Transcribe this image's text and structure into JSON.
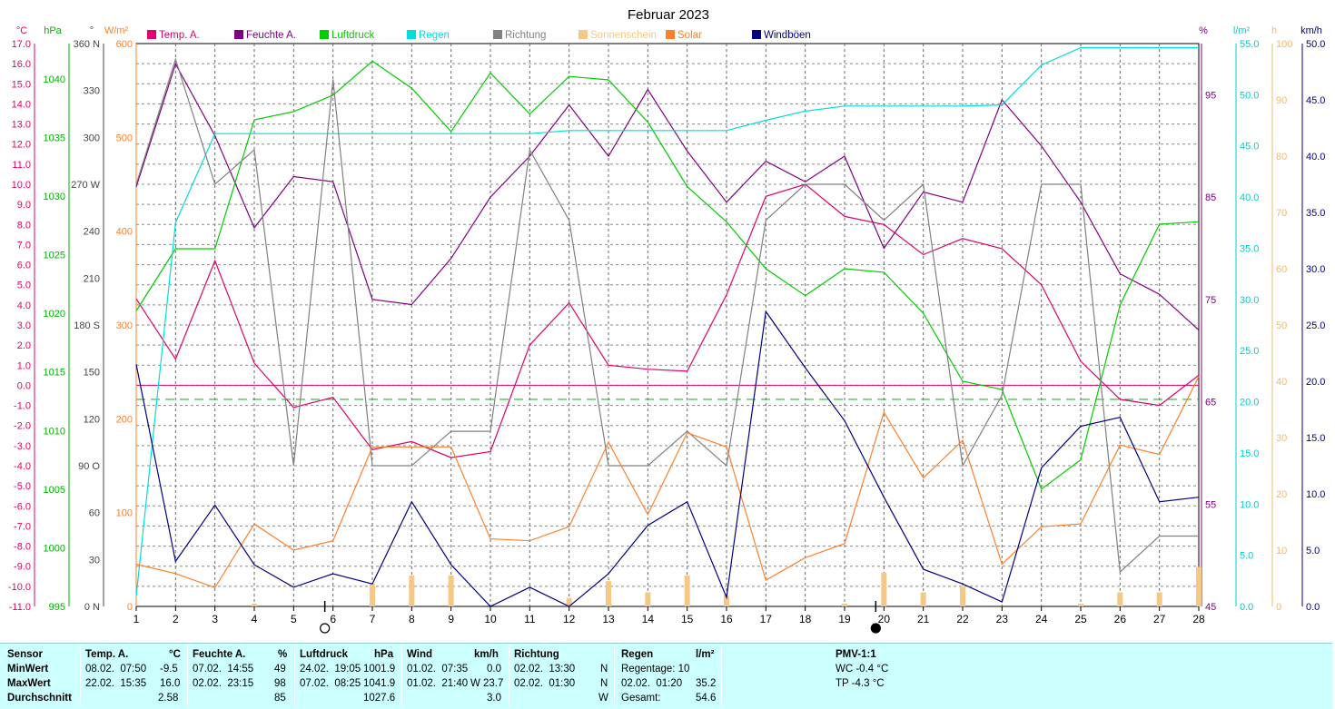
{
  "chart_data": {
    "type": "line",
    "title": "Februar 2023",
    "x": [
      1,
      2,
      3,
      4,
      5,
      6,
      7,
      8,
      9,
      10,
      11,
      12,
      13,
      14,
      15,
      16,
      17,
      18,
      19,
      20,
      21,
      22,
      23,
      24,
      25,
      26,
      27,
      28
    ],
    "x_ticks": [
      "1",
      "2",
      "3",
      "4",
      "5",
      "6",
      "7",
      "8",
      "9",
      "10",
      "11",
      "12",
      "13",
      "14",
      "15",
      "16",
      "17",
      "18",
      "19",
      "20",
      "21",
      "22",
      "23",
      "24",
      "25",
      "26",
      "27",
      "28"
    ],
    "grid": true,
    "legend_position": "top",
    "axes": {
      "temp": {
        "unit": "°C",
        "range": [
          -11,
          17
        ],
        "ticks": [
          "17.0",
          "16.0",
          "15.0",
          "14.0",
          "13.0",
          "12.0",
          "11.0",
          "10.0",
          "9.0",
          "8.0",
          "7.0",
          "6.0",
          "5.0",
          "4.0",
          "3.0",
          "2.0",
          "1.0",
          "0.0",
          "-1.0",
          "-2.0",
          "-3.0",
          "-4.0",
          "-5.0",
          "-6.0",
          "-7.0",
          "-8.0",
          "-9.0",
          "-10.0",
          "-11.0"
        ]
      },
      "press": {
        "unit": "hPa",
        "range": [
          995,
          1043
        ],
        "ticks": [
          "1040",
          "1035",
          "1030",
          "1025",
          "1020",
          "1015",
          "1010",
          "1005",
          "1000",
          "995"
        ]
      },
      "dir": {
        "unit": "°",
        "range": [
          0,
          360
        ],
        "ticks": [
          "360 N",
          "330",
          "300",
          "270 W",
          "240",
          "210",
          "180 S",
          "150",
          "120",
          "90  O",
          "60",
          "30",
          "0   N"
        ]
      },
      "solar": {
        "unit": "W/m²",
        "range": [
          0,
          600
        ],
        "ticks": [
          "600",
          "500",
          "400",
          "300",
          "200",
          "100",
          "0"
        ]
      },
      "hum": {
        "unit": "%",
        "range": [
          45,
          100
        ],
        "ticks": [
          "95",
          "85",
          "75",
          "65",
          "55",
          "45"
        ]
      },
      "rain": {
        "unit": "l/m²",
        "range": [
          0,
          55
        ],
        "ticks": [
          "55.0",
          "50.0",
          "45.0",
          "40.0",
          "35.0",
          "30.0",
          "25.0",
          "20.0",
          "15.0",
          "10.0",
          "5.0",
          "0.0"
        ]
      },
      "sun": {
        "unit": "h",
        "range": [
          0,
          100
        ],
        "ticks": [
          "100",
          "90",
          "80",
          "70",
          "60",
          "50",
          "40",
          "30",
          "20",
          "10",
          "0"
        ]
      },
      "gust": {
        "unit": "km/h",
        "range": [
          0,
          50
        ],
        "ticks": [
          "50.0",
          "45.0",
          "40.0",
          "35.0",
          "30.0",
          "25.0",
          "20.0",
          "15.0",
          "10.0",
          "5.0",
          "0.0"
        ]
      }
    },
    "series": [
      {
        "name": "Temp. A.",
        "color": "#e0006e",
        "axis": "temp",
        "values": [
          4.3,
          1.3,
          6.2,
          1.1,
          -1.1,
          -0.6,
          -3.2,
          -2.8,
          -3.6,
          -3.3,
          2.0,
          4.1,
          1.0,
          0.8,
          0.7,
          4.5,
          9.4,
          10.0,
          8.4,
          8.0,
          6.5,
          7.3,
          6.8,
          5.0,
          1.2,
          -0.7,
          -1.0,
          0.5
        ]
      },
      {
        "name": "Feuchte A.",
        "color": "#800080",
        "axis": "hum",
        "values": [
          86,
          98,
          91,
          82,
          87,
          86.5,
          75,
          74.5,
          79,
          85,
          89,
          94,
          89,
          95.5,
          89.5,
          84.5,
          88.5,
          86.5,
          89,
          80,
          85.5,
          84.5,
          94.5,
          90,
          84.5,
          77.5,
          75.5,
          72
        ]
      },
      {
        "name": "Luftdruck",
        "color": "#00cc00",
        "axis": "press",
        "values": [
          1020.2,
          1025.5,
          1025.5,
          1036.5,
          1037.2,
          1038.6,
          1041.5,
          1039.2,
          1035.5,
          1040.5,
          1037.0,
          1040.2,
          1039.9,
          1036.3,
          1030.8,
          1027.8,
          1023.8,
          1021.5,
          1023.8,
          1023.5,
          1020.0,
          1014.2,
          1013.5,
          1005.0,
          1007.5,
          1020.7,
          1027.6,
          1027.8
        ]
      },
      {
        "name": "Regen",
        "color": "#00dddd",
        "axis": "rain",
        "values": [
          1.0,
          37.5,
          46.2,
          46.2,
          46.2,
          46.2,
          46.2,
          46.2,
          46.2,
          46.2,
          46.2,
          46.5,
          46.5,
          46.5,
          46.5,
          46.5,
          47.5,
          48.4,
          48.9,
          48.9,
          48.9,
          48.9,
          49.0,
          52.9,
          54.6,
          54.6,
          54.6,
          54.6
        ]
      },
      {
        "name": "Richtung",
        "color": "#808080",
        "axis": "dir",
        "values": [
          270,
          350,
          270,
          292,
          90,
          337,
          90,
          90,
          112,
          112,
          292,
          247,
          90,
          90,
          112,
          90,
          247,
          270,
          270,
          247,
          270,
          90,
          135,
          270,
          270,
          22,
          45,
          45
        ]
      },
      {
        "name": "Sonnenschein",
        "color": "#f5c886",
        "axis": "sun",
        "kind": "bar",
        "values": [
          0,
          0,
          0,
          0.5,
          0,
          0,
          4.0,
          5.5,
          5.5,
          0,
          0,
          1.5,
          4.5,
          2.5,
          5.5,
          2.0,
          0,
          0,
          0.5,
          6.0,
          2.5,
          3.5,
          0,
          0,
          0.5,
          2.5,
          2.5,
          7.0
        ]
      },
      {
        "name": "Solar",
        "color": "#ff7f2a",
        "axis": "solar",
        "values": [
          45,
          35,
          20,
          88,
          60,
          70,
          170,
          170,
          170,
          72,
          70,
          85,
          175,
          98,
          185,
          170,
          28,
          52,
          67,
          207,
          137,
          177,
          45,
          85,
          88,
          172,
          162,
          245
        ]
      },
      {
        "name": "Windböen",
        "color": "#000080",
        "axis": "gust",
        "values": [
          21.5,
          4.0,
          9.0,
          3.7,
          1.7,
          2.9,
          2.0,
          9.3,
          3.7,
          0.0,
          1.7,
          0.0,
          2.9,
          7.2,
          9.3,
          0.8,
          26.2,
          21.2,
          16.5,
          9.7,
          3.3,
          2.0,
          0.4,
          12.3,
          16.0,
          16.8,
          9.3,
          9.7
        ]
      }
    ],
    "reference_line": {
      "value": 0.0,
      "axis": "temp",
      "color": "#e0006e"
    },
    "frost_line": {
      "value": -0.7,
      "axis": "temp",
      "color": "#22bb22"
    },
    "moon_phases": [
      {
        "x": 6,
        "phase": "full"
      },
      {
        "x": 20,
        "phase": "new"
      }
    ]
  },
  "stats": {
    "row_labels": [
      "Sensor",
      "MinWert",
      "MaxWert",
      "Durchschnitt"
    ],
    "temp": {
      "title": "Temp. A.",
      "unit": "°C",
      "min_time": "08.02.  07:50",
      "min_val": "-9.5",
      "max_time": "22.02.  15:35",
      "max_val": "16.0",
      "avg": "2.58"
    },
    "hum": {
      "title": "Feuchte A.",
      "unit": "%",
      "min_time": "07.02.  14:55",
      "min_val": "49",
      "max_time": "02.02.  23:15",
      "max_val": "98",
      "avg": "85"
    },
    "press": {
      "title": "Luftdruck",
      "unit": "hPa",
      "min_time": "24.02.  19:05",
      "min_val": "1001.9",
      "max_time": "07.02.  08:25",
      "max_val": "1041.9",
      "avg": "1027.6"
    },
    "wind": {
      "title": "Wind",
      "unit": "km/h",
      "min_time": "01.02.  07:35",
      "min_val": "0.0",
      "max_time": "01.02.  21:40",
      "max_dir": "W",
      "max_val": "23.7",
      "avg": "3.0"
    },
    "dir": {
      "title": "Richtung",
      "min_time": "02.02.  13:30",
      "min_val": "N",
      "max_time": "02.02.  01:30",
      "max_val": "N",
      "avg": "W"
    },
    "rain": {
      "title": "Regen",
      "unit": "l/m²",
      "days": "Regentage: 10",
      "max_time": "02.02.  01:20",
      "max_val": "35.2",
      "total_label": "Gesamt:",
      "total": "54.6"
    },
    "pmv": {
      "title": "PMV-1:1",
      "wc": "WC -0.4 °C",
      "tp": "TP -4.3 °C"
    }
  }
}
